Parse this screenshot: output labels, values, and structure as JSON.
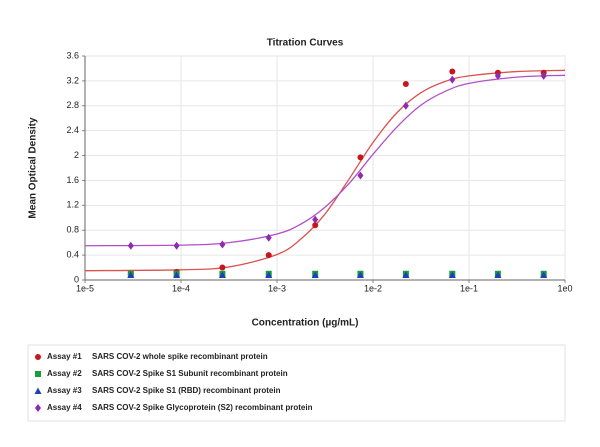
{
  "chart_data": {
    "type": "scatter",
    "title": "Titration Curves",
    "x_label": "Concentration (µg/mL)",
    "y_label": "Mean Optical Density",
    "x_scale": "log",
    "grid": true,
    "xlim": [
      1e-05,
      1
    ],
    "ylim": [
      0,
      3.6
    ],
    "xticks": [
      {
        "value": 1e-05,
        "label": "1e-5"
      },
      {
        "value": 0.0001,
        "label": "1e-4"
      },
      {
        "value": 0.001,
        "label": "1e-3"
      },
      {
        "value": 0.01,
        "label": "1e-2"
      },
      {
        "value": 0.1,
        "label": "1e-1"
      },
      {
        "value": 1,
        "label": "1e0"
      }
    ],
    "yticks": [
      0,
      0.4,
      0.8,
      1.2,
      1.6,
      2,
      2.4,
      2.8,
      3.2,
      3.6
    ],
    "x": [
      3e-05,
      9e-05,
      0.00027,
      0.00082,
      0.0025,
      0.0074,
      0.022,
      0.067,
      0.2,
      0.6
    ],
    "series": [
      {
        "name": "Assay #1",
        "description": "SARS COV-2 whole spike recombinant protein",
        "color": "#c8161d",
        "marker": "circle",
        "values": [
          0.1,
          0.13,
          0.2,
          0.4,
          0.88,
          1.97,
          3.15,
          3.35,
          3.33,
          3.33
        ],
        "fit": {
          "color": "#d9534f",
          "x": [
            1e-05,
            0.0001,
            0.000316,
            0.001,
            0.00178,
            0.00316,
            0.00562,
            0.01,
            0.0178,
            0.0316,
            0.0562,
            0.1,
            0.316,
            1
          ],
          "values": [
            0.15,
            0.164,
            0.21,
            0.41,
            0.66,
            1.06,
            1.62,
            2.21,
            2.69,
            3.01,
            3.19,
            3.28,
            3.35,
            3.37
          ]
        }
      },
      {
        "name": "Assay #2",
        "description": "SARS COV-2 Spike S1 Subunit recombinant protein",
        "color": "#1a9b3c",
        "marker": "square",
        "values": [
          0.1,
          0.1,
          0.1,
          0.1,
          0.1,
          0.1,
          0.1,
          0.1,
          0.1,
          0.1
        ]
      },
      {
        "name": "Assay #3",
        "description": "SARS COV-2 Spike S1 (RBD) recombinant protein",
        "color": "#1f3fbf",
        "marker": "triangle",
        "values": [
          0.08,
          0.08,
          0.08,
          0.08,
          0.08,
          0.08,
          0.08,
          0.08,
          0.08,
          0.08
        ]
      },
      {
        "name": "Assay #4",
        "description": "SARS COV-2 Spike Glycoprotein (S2) recombinant protein",
        "color": "#8e2bb0",
        "marker": "diamond",
        "values": [
          0.55,
          0.55,
          0.57,
          0.68,
          0.97,
          1.68,
          2.8,
          3.22,
          3.28,
          3.28
        ],
        "fit": {
          "color": "#b050c8",
          "x": [
            1e-05,
            0.0001,
            0.000316,
            0.001,
            0.00178,
            0.00316,
            0.00562,
            0.01,
            0.0178,
            0.0316,
            0.0562,
            0.1,
            0.316,
            1
          ],
          "values": [
            0.551,
            0.56,
            0.6,
            0.74,
            0.9,
            1.17,
            1.55,
            2.02,
            2.46,
            2.81,
            3.03,
            3.16,
            3.26,
            3.29
          ]
        }
      }
    ]
  }
}
